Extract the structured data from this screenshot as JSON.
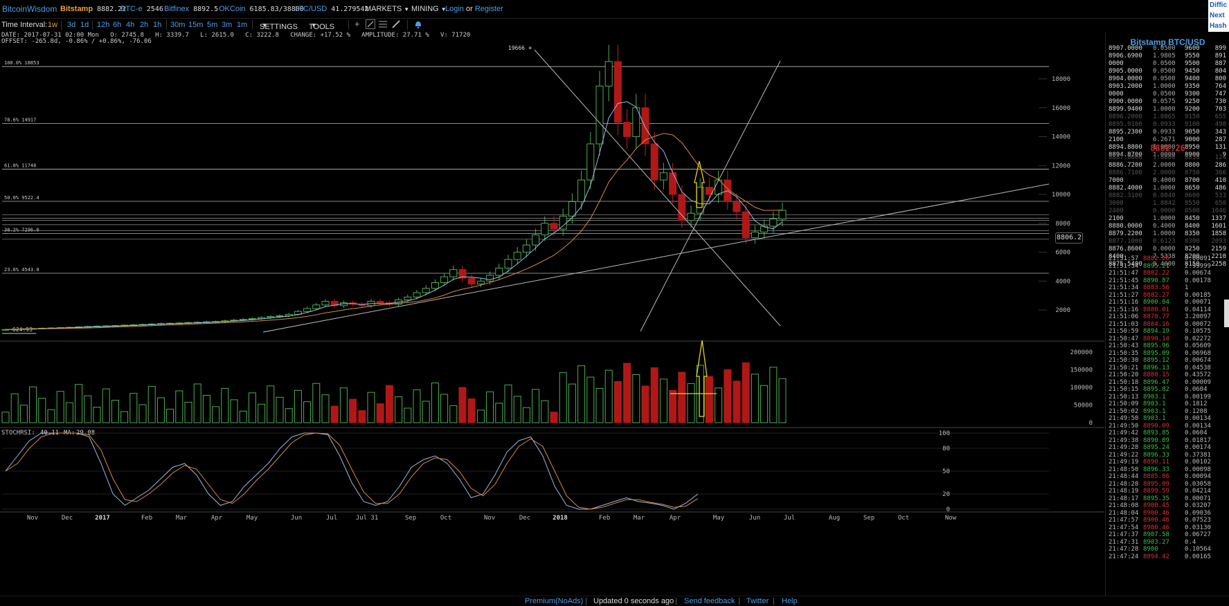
{
  "app": {
    "title": "BitcoinWisdom"
  },
  "exchanges": [
    {
      "name": "Bitstamp",
      "price": "8882.22",
      "active": true
    },
    {
      "name": "BTC-e",
      "price": "2546",
      "active": false
    },
    {
      "name": "Bitfinex",
      "price": "8892.5",
      "active": false
    },
    {
      "name": "OKCoin",
      "price": "6185.83/38800",
      "active": false
    },
    {
      "name": "LTC/USD",
      "price": "41.279542",
      "active": false
    }
  ],
  "nav": {
    "markets": "MARKETS",
    "mining": "MINING",
    "login": "Login",
    "or": "or",
    "register": "Register"
  },
  "sidebox": [
    "Diffic",
    "Next",
    "Hash"
  ],
  "toolbar": {
    "label": "Time Interval:",
    "intervals": [
      "1w",
      "3d",
      "1d",
      "12h",
      "6h",
      "4h",
      "2h",
      "1h",
      "30m",
      "15m",
      "5m",
      "3m",
      "1m"
    ],
    "selected": "1w",
    "settings": "SETTINGS",
    "tools": "TOOLS"
  },
  "info": {
    "line1": "DATE: 2017-07-31 02:00 Mon   O: 2745.8   H: 3339.7   L: 2615.0   C: 3222.8   CHANGE: +17.52 %   AMPLITUDE: 27.71 %   V: 71720",
    "line2": "OFFSET: -265.8d, -0.86% / +0.86%, -76.06"
  },
  "chart_data": {
    "type": "candlestick",
    "price_axis": [
      "18000",
      "16000",
      "14000",
      "12000",
      "10000",
      "8000",
      "6000",
      "4000",
      "2000"
    ],
    "volume_axis": [
      "200000",
      "150000",
      "100000",
      "50000",
      "0"
    ],
    "rsi_axis": [
      "100",
      "80",
      "50",
      "20",
      "0"
    ],
    "x_labels": [
      "Nov",
      "Dec",
      "2017",
      "Feb",
      "Mar",
      "Apr",
      "May",
      "Jun",
      "Jul",
      "Jul 31",
      "Sep",
      "Oct",
      "Nov",
      "Dec",
      "2018",
      "Feb",
      "Mar",
      "Apr",
      "May",
      "Jun",
      "Jul",
      "Aug",
      "Sep",
      "Oct",
      "Now"
    ],
    "fib_levels": [
      {
        "label": "100.0% 18853",
        "value": 18853
      },
      {
        "label": "78.6% 14917",
        "value": 14917
      },
      {
        "label": "61.8% 11748",
        "value": 11748
      },
      {
        "label": "50.0% 9522.4",
        "value": 9522.4
      },
      {
        "label": "38.2% 7296.0",
        "value": 7296
      },
      {
        "label": "23.6% 4543.0",
        "value": 4543
      }
    ],
    "peak_label": "19666",
    "low_label": "624.93",
    "current_price": "8806.2",
    "stochrsi": {
      "label": "STOCHRSI:",
      "value": "40.11",
      "ma_label": "MA:",
      "ma": "29.08"
    }
  },
  "orderbook": {
    "title": "Bitstamp BTC/USD",
    "asks": [
      [
        "8907.0000",
        "0.0500",
        "9600",
        "899"
      ],
      [
        "8906.6900",
        "1.9805",
        "9550",
        "891"
      ],
      [
        "0000",
        "0.0500",
        "9500",
        "887"
      ],
      [
        "8905.0000",
        "0.0500",
        "9450",
        "804"
      ],
      [
        "8904.0000",
        "0.0500",
        "9400",
        "800"
      ],
      [
        "8903.2000",
        "1.0000",
        "9350",
        "764"
      ],
      [
        "0000",
        "0.0500",
        "9300",
        "747"
      ],
      [
        "8900.0000",
        "0.0575",
        "9250",
        "730"
      ],
      [
        "8899.9400",
        "1.0000",
        "9200",
        "703"
      ],
      [
        "8896.2000",
        "1.0865",
        "9150",
        "655"
      ],
      [
        "8895.9100",
        "0.0933",
        "9100",
        "498"
      ],
      [
        "8895.2300",
        "0.0933",
        "9050",
        "343"
      ],
      [
        "2100",
        "6.2671",
        "9000",
        "287"
      ],
      [
        "8894.8800",
        "1.0000",
        "8950",
        "131"
      ],
      [
        "8894.8700",
        "1.0000",
        "8900",
        "9"
      ]
    ],
    "last": "8882.26",
    "bids": [
      [
        "8887.0000",
        "1.0000",
        "8850",
        "124"
      ],
      [
        "8886.7200",
        "2.0000",
        "8800",
        "286"
      ],
      [
        "8886.7100",
        "2.0000",
        "8750",
        "366"
      ],
      [
        "7000",
        "0.4000",
        "8700",
        "410"
      ],
      [
        "8882.4000",
        "1.0000",
        "8650",
        "486"
      ],
      [
        "8882.3100",
        "0.0840",
        "8600",
        "533"
      ],
      [
        "3000",
        "1.8842",
        "8550",
        "650"
      ],
      [
        "2400",
        "0.0000",
        "8500",
        "1046"
      ],
      [
        "2100",
        "1.0000",
        "8450",
        "1337"
      ],
      [
        "8880.0000",
        "0.4000",
        "8400",
        "1601"
      ],
      [
        "8879.2200",
        "1.0000",
        "8350",
        "1858"
      ],
      [
        "8877.1000",
        "0.6123",
        "8300",
        "2093"
      ],
      [
        "8876.8600",
        "0.0000",
        "8250",
        "2159"
      ],
      [
        "8400",
        "7.5338",
        "8200",
        "2210"
      ],
      [
        "8875.5400",
        "0.4000",
        "8150",
        "2258"
      ]
    ]
  },
  "trades": [
    [
      "21:51:57",
      "8882.26",
      "0.00091",
      "dn"
    ],
    [
      "21:51:54",
      "8895.21",
      "2.99999",
      "up"
    ],
    [
      "21:51:47",
      "8882.22",
      "0.00674",
      "dn"
    ],
    [
      "21:51:45",
      "8890.87",
      "0.00178",
      "up"
    ],
    [
      "21:51:34",
      "8883.56",
      "1",
      "dn"
    ],
    [
      "21:51:27",
      "8882.27",
      "0.00185",
      "dn"
    ],
    [
      "21:51:16",
      "8900.04",
      "0.00071",
      "up"
    ],
    [
      "21:51:16",
      "8880.01",
      "0.04114",
      "dn"
    ],
    [
      "21:51:06",
      "8870.77",
      "3.20097",
      "dn"
    ],
    [
      "21:51:03",
      "8884.16",
      "0.00072",
      "dn"
    ],
    [
      "21:50:59",
      "8894.19",
      "0.10575",
      "up"
    ],
    [
      "21:50:47",
      "8890.14",
      "0.02272",
      "dn"
    ],
    [
      "21:50:43",
      "8895.96",
      "0.05609",
      "up"
    ],
    [
      "21:50:35",
      "8895.09",
      "0.06968",
      "up"
    ],
    [
      "21:50:30",
      "8895.12",
      "0.00674",
      "up"
    ],
    [
      "21:50:21",
      "8896.13",
      "0.04538",
      "up"
    ],
    [
      "21:50:20",
      "8880.15",
      "0.43572",
      "dn"
    ],
    [
      "21:50:18",
      "8896.47",
      "0.00009",
      "up"
    ],
    [
      "21:50:15",
      "8895.82",
      "0.0604",
      "up"
    ],
    [
      "21:50:13",
      "8903.1",
      "0.00199",
      "up"
    ],
    [
      "21:50:09",
      "8903.1",
      "0.1812",
      "up"
    ],
    [
      "21:50:02",
      "8903.1",
      "0.1208",
      "up"
    ],
    [
      "21:49:50",
      "8903.1",
      "0.00134",
      "up"
    ],
    [
      "21:49:50",
      "8890.09",
      "0.00134",
      "dn"
    ],
    [
      "21:49:42",
      "8893.85",
      "0.0604",
      "up"
    ],
    [
      "21:49:38",
      "8890.89",
      "0.01817",
      "up"
    ],
    [
      "21:49:28",
      "8895.24",
      "0.00174",
      "up"
    ],
    [
      "21:49:22",
      "8896.33",
      "0.37381",
      "up"
    ],
    [
      "21:49:19",
      "8890.11",
      "0.00102",
      "dn"
    ],
    [
      "21:48:50",
      "8896.33",
      "0.00098",
      "up"
    ],
    [
      "21:48:44",
      "8885.06",
      "0.00094",
      "dn"
    ],
    [
      "21:48:28",
      "8895.09",
      "0.03058",
      "dn"
    ],
    [
      "21:48:19",
      "8899.59",
      "0.04214",
      "dn"
    ],
    [
      "21:48:17",
      "8895.35",
      "0.00071",
      "up"
    ],
    [
      "21:48:08",
      "8900.45",
      "0.03207",
      "dn"
    ],
    [
      "21:48:04",
      "8900.46",
      "0.09036",
      "dn"
    ],
    [
      "21:47:57",
      "8900.46",
      "0.07523",
      "dn"
    ],
    [
      "21:47:54",
      "8900.46",
      "0.03130",
      "dn"
    ],
    [
      "21:47:37",
      "8907.58",
      "0.06727",
      "up"
    ],
    [
      "21:47:31",
      "8903.27",
      "0.4",
      "up"
    ],
    [
      "21:47:28",
      "8900",
      "0.10564",
      "up"
    ],
    [
      "21:47:24",
      "8894.42",
      "0.00165",
      "dn"
    ]
  ],
  "footer": {
    "premium": "Premium(NoAds)",
    "updated": "Updated 0 seconds ago",
    "feedback": "Send feedback",
    "twitter": "Twitter",
    "help": "Help"
  }
}
